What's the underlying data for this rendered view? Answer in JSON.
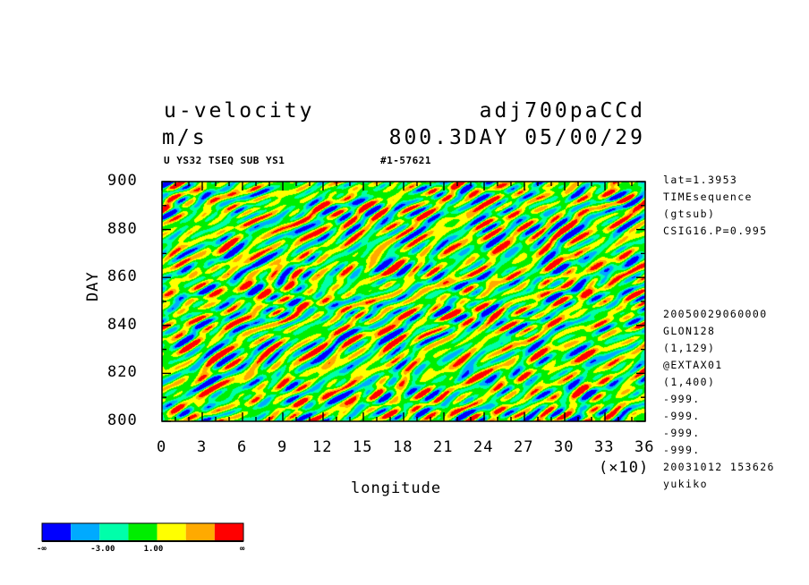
{
  "header": {
    "variable": "u-velocity",
    "units": "m/s",
    "dataset": "adj700paCCd",
    "time_info": "800.3DAY 05/00/29",
    "sub_left": "U YS32 TSEQ SUB YS1",
    "sub_right": "#1-57621"
  },
  "sidebar": {
    "top": [
      "lat=1.3953",
      "TIMEsequence",
      "(gtsub)",
      "CSIG16.P=0.995"
    ],
    "bottom": [
      "20050029060000",
      "GLON128",
      "(1,129)",
      "@EXTAX01",
      "(1,400)",
      "-999.",
      "-999.",
      "-999.",
      "-999.",
      "20031012 153626",
      "yukiko"
    ]
  },
  "colorbar": {
    "colors": [
      "#0000ff",
      "#00aaff",
      "#00ffaa",
      "#00ee00",
      "#ffff00",
      "#ffaa00",
      "#ff0000"
    ],
    "labels": [
      "-∞",
      "-3.00",
      "1.00",
      "∞"
    ]
  },
  "chart_data": {
    "type": "heatmap",
    "title": "u-velocity",
    "xlabel": "longitude",
    "ylabel": "DAY",
    "x_multiplier_label": "(×10)",
    "x_ticks": [
      "0",
      "3",
      "6",
      "9",
      "12",
      "15",
      "18",
      "21",
      "24",
      "27",
      "30",
      "33",
      "36"
    ],
    "y_ticks": [
      "800",
      "820",
      "840",
      "860",
      "880",
      "900"
    ],
    "xlim": [
      0,
      36
    ],
    "ylim": [
      800,
      900
    ],
    "levels": [
      -3.0,
      1.0
    ],
    "note": "noisy filled-contour field of u-velocity vs longitude and day"
  }
}
